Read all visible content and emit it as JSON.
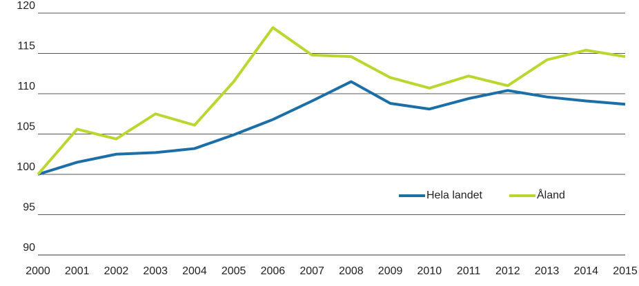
{
  "chart_data": {
    "type": "line",
    "categories": [
      "2000",
      "2001",
      "2002",
      "2003",
      "2004",
      "2005",
      "2006",
      "2007",
      "2008",
      "2009",
      "2010",
      "2011",
      "2012",
      "2013",
      "2014",
      "2015"
    ],
    "series": [
      {
        "name": "Hela landet",
        "color": "#1b6fa6",
        "values": [
          100,
          101.5,
          102.5,
          102.7,
          103.2,
          104.9,
          106.8,
          109.1,
          111.5,
          108.8,
          108.1,
          109.4,
          110.4,
          109.6,
          109.1,
          108.7
        ]
      },
      {
        "name": "Åland",
        "color": "#bcd631",
        "values": [
          100,
          105.6,
          104.4,
          107.5,
          106.1,
          111.5,
          118.2,
          114.8,
          114.6,
          112.0,
          110.7,
          112.2,
          111.0,
          114.2,
          115.4,
          114.6
        ]
      }
    ],
    "ylim": [
      90,
      120
    ],
    "yticks": [
      90,
      95,
      100,
      105,
      110,
      115,
      120
    ],
    "grid": true,
    "legend": "lower right"
  }
}
